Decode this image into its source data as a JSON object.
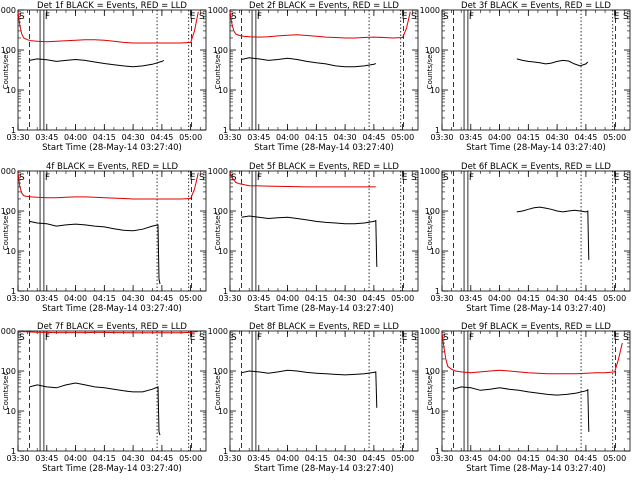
{
  "chart_data": {
    "type": "line",
    "layout": "3x3 grid of small multiples",
    "shared": {
      "xlabel": "Start Time (28-May-14 03:27:40)",
      "ylabel": "Counts/sec",
      "x_tick_labels": [
        "03:30",
        "03:45",
        "04:00",
        "04:15",
        "04:30",
        "04:45",
        "05:00"
      ],
      "x_tick_minutes": [
        30,
        45,
        60,
        75,
        90,
        105,
        120
      ],
      "xlim_minutes": [
        30,
        128
      ],
      "y_scale": "log",
      "ylim": [
        1,
        1000
      ],
      "y_tick_labels": [
        "1",
        "10",
        "100",
        "1000"
      ],
      "y_tick_values": [
        1,
        10,
        100,
        1000
      ],
      "marker_labels": {
        "S": "S",
        "F": "F",
        "E": "E"
      },
      "colors": {
        "events": "#000000",
        "lld": "#e00000"
      },
      "grid": false,
      "legend": "none (legend in title)"
    },
    "panels": [
      {
        "title": "Det 1f BLACK = Events, RED = LLD",
        "events": {
          "x": [
            36,
            40,
            45,
            50,
            55,
            60,
            65,
            70,
            75,
            80,
            85,
            90,
            95,
            100,
            105,
            106
          ],
          "y": [
            55,
            60,
            57,
            52,
            55,
            58,
            55,
            50,
            46,
            43,
            40,
            38,
            40,
            44,
            52,
            55
          ]
        },
        "lld": {
          "x": [
            30,
            31,
            32,
            33,
            35,
            37,
            40,
            45,
            50,
            55,
            60,
            65,
            70,
            75,
            80,
            85,
            90,
            95,
            100,
            105,
            110,
            115,
            120,
            122,
            124
          ],
          "y": [
            900,
            400,
            250,
            200,
            180,
            170,
            165,
            160,
            165,
            170,
            175,
            180,
            180,
            175,
            165,
            155,
            150,
            150,
            150,
            150,
            150,
            150,
            155,
            300,
            900
          ]
        },
        "markers": {
          "dashed": [
            36,
            120.5
          ],
          "solid": [
            41.5,
            43.5
          ],
          "dotted": [
            102.5,
            119
          ]
        }
      },
      {
        "title": "Det 2f BLACK = Events, RED = LLD",
        "events": {
          "x": [
            36,
            40,
            45,
            50,
            55,
            60,
            65,
            70,
            75,
            80,
            85,
            90,
            95,
            100,
            105,
            106
          ],
          "y": [
            58,
            64,
            60,
            55,
            58,
            62,
            58,
            52,
            48,
            45,
            40,
            38,
            38,
            40,
            44,
            46
          ]
        },
        "lld": {
          "x": [
            30,
            31,
            32,
            33,
            35,
            37,
            40,
            45,
            50,
            55,
            60,
            65,
            70,
            75,
            80,
            85,
            90,
            95,
            100,
            105,
            110,
            115,
            120,
            122,
            124
          ],
          "y": [
            900,
            450,
            300,
            250,
            230,
            220,
            215,
            210,
            215,
            225,
            235,
            240,
            230,
            220,
            210,
            205,
            200,
            200,
            205,
            210,
            205,
            200,
            205,
            350,
            900
          ]
        },
        "markers": {
          "dashed": [
            36,
            120.5
          ],
          "solid": [
            41.5,
            43.5
          ],
          "dotted": [
            102.5,
            119
          ]
        }
      },
      {
        "title": "Det 3f BLACK = Events, RED = LLD",
        "events": {
          "x": [
            69,
            72,
            75,
            78,
            81,
            84,
            87,
            90,
            93,
            96,
            99,
            102,
            105,
            106
          ],
          "y": [
            60,
            55,
            52,
            50,
            48,
            45,
            47,
            52,
            55,
            53,
            45,
            40,
            45,
            50
          ]
        },
        "lld": {
          "x": [],
          "y": []
        },
        "markers": {
          "dashed": [
            36,
            120.5
          ],
          "solid": [
            41.5,
            43.5
          ],
          "dotted": [
            102.5,
            119
          ]
        }
      },
      {
        "title": "4f BLACK = Events, RED = LLD",
        "events": {
          "x": [
            36,
            40,
            45,
            50,
            55,
            60,
            65,
            70,
            75,
            80,
            85,
            90,
            95,
            100,
            103,
            103.5,
            104
          ],
          "y": [
            55,
            50,
            48,
            42,
            45,
            47,
            45,
            42,
            40,
            36,
            33,
            32,
            35,
            42,
            45,
            2,
            1.5
          ]
        },
        "lld": {
          "x": [
            30,
            31,
            32,
            33,
            35,
            37,
            40,
            45,
            50,
            55,
            60,
            65,
            70,
            75,
            80,
            85,
            90,
            95,
            100,
            105,
            110,
            115,
            120,
            122,
            124
          ],
          "y": [
            900,
            400,
            280,
            240,
            230,
            225,
            220,
            215,
            215,
            220,
            225,
            225,
            220,
            215,
            210,
            205,
            200,
            200,
            200,
            200,
            200,
            200,
            205,
            350,
            900
          ]
        },
        "markers": {
          "dashed": [
            36,
            120.5
          ],
          "solid": [
            41.5,
            43.5
          ],
          "dotted": [
            102.5,
            119
          ]
        }
      },
      {
        "title": "Det 5f BLACK = Events, RED = LLD",
        "events": {
          "x": [
            36,
            40,
            45,
            50,
            55,
            60,
            65,
            70,
            75,
            80,
            85,
            90,
            95,
            100,
            105,
            106,
            106.5
          ],
          "y": [
            70,
            75,
            70,
            65,
            68,
            70,
            65,
            60,
            55,
            52,
            50,
            48,
            48,
            50,
            55,
            58,
            4
          ]
        },
        "lld": {
          "x": [
            30,
            31,
            32,
            33,
            35,
            40,
            50,
            60,
            70,
            80,
            90,
            100,
            105,
            106
          ],
          "y": [
            900,
            700,
            600,
            520,
            480,
            430,
            420,
            410,
            400,
            400,
            400,
            400,
            400,
            400
          ]
        },
        "markers": {
          "dashed": [
            36,
            120.5
          ],
          "solid": [
            41.5,
            43.5
          ],
          "dotted": [
            102.5,
            119
          ]
        }
      },
      {
        "title": "Det 6f BLACK = Events, RED = LLD",
        "events": {
          "x": [
            69,
            72,
            75,
            78,
            81,
            84,
            87,
            90,
            93,
            96,
            99,
            102,
            105,
            106,
            106.5
          ],
          "y": [
            95,
            100,
            110,
            120,
            125,
            118,
            110,
            100,
            95,
            100,
            105,
            100,
            95,
            100,
            6
          ]
        },
        "lld": {
          "x": [],
          "y": []
        },
        "markers": {
          "dashed": [
            36,
            120.5
          ],
          "solid": [
            41.5,
            43.5
          ],
          "dotted": [
            102.5,
            119
          ]
        }
      },
      {
        "title": "Det 7f BLACK = Events, RED = LLD",
        "events": {
          "x": [
            36,
            40,
            45,
            50,
            55,
            60,
            65,
            70,
            75,
            80,
            85,
            90,
            95,
            100,
            103,
            103.5,
            104
          ],
          "y": [
            40,
            45,
            40,
            38,
            45,
            50,
            45,
            40,
            38,
            35,
            32,
            30,
            30,
            35,
            40,
            3,
            2.5
          ]
        },
        "lld": {
          "x": [
            30,
            35,
            40,
            45,
            50,
            55,
            60,
            65,
            70,
            75,
            80,
            85,
            90,
            95,
            100,
            105,
            110,
            115,
            120,
            124
          ],
          "y": [
            980,
            950,
            930,
            920,
            910,
            910,
            910,
            910,
            920,
            920,
            910,
            910,
            900,
            900,
            900,
            900,
            900,
            900,
            920,
            980
          ]
        },
        "markers": {
          "dashed": [
            36,
            120.5
          ],
          "solid": [
            41.5,
            43.5
          ],
          "dotted": [
            102.5,
            119
          ]
        }
      },
      {
        "title": "Det 8f BLACK = Events, RED = LLD",
        "events": {
          "x": [
            36,
            40,
            45,
            50,
            55,
            60,
            65,
            70,
            75,
            80,
            85,
            90,
            95,
            100,
            105,
            106,
            106.5
          ],
          "y": [
            90,
            100,
            95,
            88,
            95,
            105,
            100,
            92,
            88,
            85,
            82,
            80,
            82,
            85,
            92,
            95,
            12
          ]
        },
        "lld": {
          "x": [],
          "y": []
        },
        "markers": {
          "dashed": [
            36,
            120.5
          ],
          "solid": [
            41.5,
            43.5
          ],
          "dotted": [
            102.5,
            119
          ]
        }
      },
      {
        "title": "Det 9f BLACK = Events, RED = LLD",
        "events": {
          "x": [
            36,
            40,
            45,
            50,
            55,
            60,
            65,
            70,
            75,
            80,
            85,
            90,
            95,
            100,
            105,
            106,
            106.5
          ],
          "y": [
            35,
            40,
            38,
            33,
            35,
            38,
            35,
            33,
            30,
            28,
            26,
            25,
            26,
            28,
            32,
            34,
            3
          ]
        },
        "lld": {
          "x": [
            30,
            31,
            32,
            33,
            35,
            37,
            40,
            45,
            50,
            55,
            60,
            65,
            70,
            75,
            80,
            85,
            90,
            95,
            100,
            105,
            110,
            115,
            120,
            122,
            124
          ],
          "y": [
            900,
            400,
            200,
            130,
            110,
            100,
            95,
            90,
            95,
            100,
            105,
            100,
            95,
            90,
            88,
            85,
            85,
            85,
            85,
            88,
            90,
            90,
            95,
            200,
            500
          ]
        },
        "markers": {
          "dashed": [
            36,
            120.5
          ],
          "solid": [
            41.5,
            43.5
          ],
          "dotted": [
            102.5,
            119
          ]
        }
      }
    ]
  }
}
